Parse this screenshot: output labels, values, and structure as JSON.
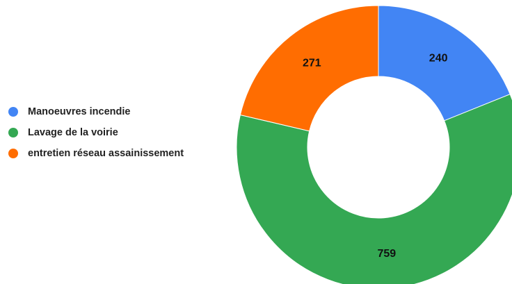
{
  "chart_data": {
    "type": "pie",
    "title": "",
    "donut": true,
    "legend_position": "left",
    "categories": [
      "Manoeuvres incendie",
      "Lavage de la voirie",
      "entretien réseau assainissement"
    ],
    "values": [
      240,
      759,
      271
    ],
    "colors": [
      "#4285f4",
      "#34a853",
      "#ff6d01"
    ],
    "data_labels": [
      "240",
      "759",
      "271"
    ]
  }
}
